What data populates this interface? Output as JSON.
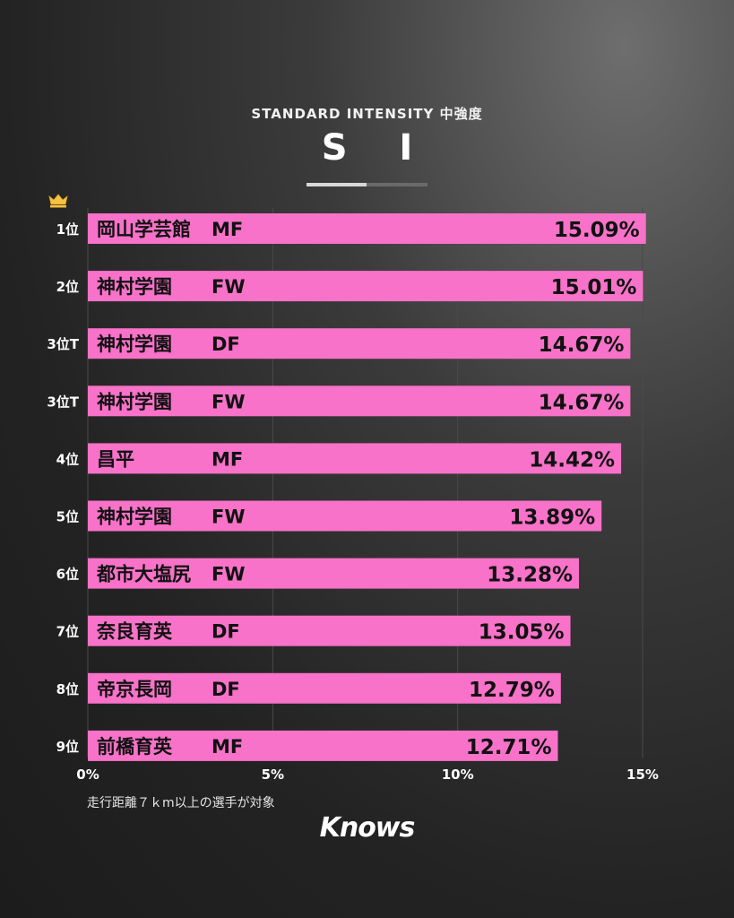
{
  "header": {
    "subtitle": "STANDARD INTENSITY 中強度",
    "title": "S I"
  },
  "chart_data": {
    "type": "bar",
    "orientation": "horizontal",
    "title": "S I",
    "subtitle": "STANDARD INTENSITY 中強度",
    "xlim": [
      0,
      15
    ],
    "x_ticks": [
      "0%",
      "5%",
      "10%",
      "15%"
    ],
    "x_tick_values": [
      0,
      5,
      10,
      15
    ],
    "grid": true,
    "bar_color": "#f772c8",
    "rows": [
      {
        "rank": "1位",
        "team": "岡山学芸館",
        "position": "MF",
        "value": 15.09,
        "label": "15.09%"
      },
      {
        "rank": "2位",
        "team": "神村学園",
        "position": "FW",
        "value": 15.01,
        "label": "15.01%"
      },
      {
        "rank": "3位T",
        "team": "神村学園",
        "position": "DF",
        "value": 14.67,
        "label": "14.67%"
      },
      {
        "rank": "3位T",
        "team": "神村学園",
        "position": "FW",
        "value": 14.67,
        "label": "14.67%"
      },
      {
        "rank": "4位",
        "team": "昌平",
        "position": "MF",
        "value": 14.42,
        "label": "14.42%"
      },
      {
        "rank": "5位",
        "team": "神村学園",
        "position": "FW",
        "value": 13.89,
        "label": "13.89%"
      },
      {
        "rank": "6位",
        "team": "都市大塩尻",
        "position": "FW",
        "value": 13.28,
        "label": "13.28%"
      },
      {
        "rank": "7位",
        "team": "奈良育英",
        "position": "DF",
        "value": 13.05,
        "label": "13.05%"
      },
      {
        "rank": "8位",
        "team": "帝京長岡",
        "position": "DF",
        "value": 12.79,
        "label": "12.79%"
      },
      {
        "rank": "9位",
        "team": "前橋育英",
        "position": "MF",
        "value": 12.71,
        "label": "12.71%"
      }
    ],
    "crown_icon": "crown-icon"
  },
  "footnote": "走行距離７ｋm以上の選手が対象",
  "brand": "Knows"
}
